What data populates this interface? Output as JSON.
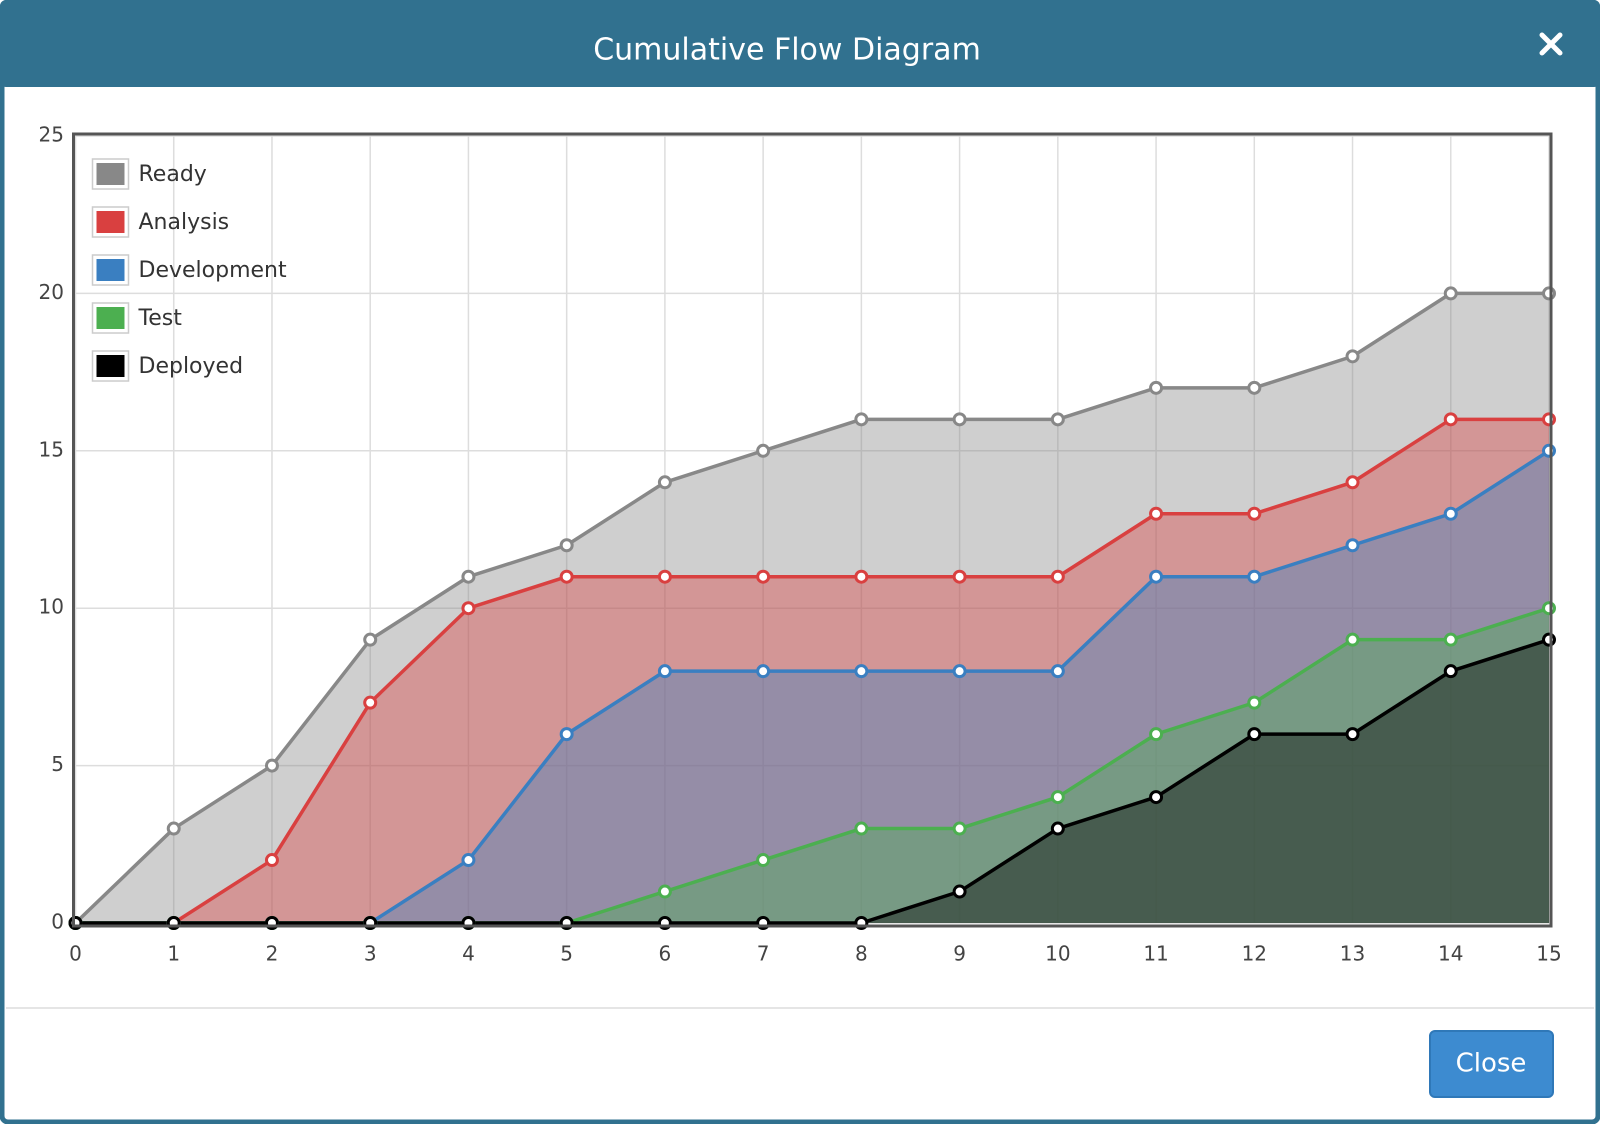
{
  "dialog": {
    "title": "Cumulative Flow Diagram",
    "button": "Close"
  },
  "chart_data": {
    "type": "area",
    "x": [
      0,
      1,
      2,
      3,
      4,
      5,
      6,
      7,
      8,
      9,
      10,
      11,
      12,
      13,
      14,
      15
    ],
    "xlim": [
      0,
      15
    ],
    "xticks": [
      0,
      1,
      2,
      3,
      4,
      5,
      6,
      7,
      8,
      9,
      10,
      11,
      12,
      13,
      14,
      15
    ],
    "ylim": [
      0,
      25
    ],
    "yticks": [
      0,
      5,
      10,
      15,
      20,
      25
    ],
    "grid": true,
    "legend": "top-left",
    "series": [
      {
        "name": "Ready",
        "color": "#888888",
        "values": [
          0,
          3,
          5,
          9,
          11,
          12,
          14,
          15,
          16,
          16,
          16,
          17,
          17,
          18,
          20,
          20
        ]
      },
      {
        "name": "Analysis",
        "color": "#d94040",
        "values": [
          0,
          0,
          2,
          7,
          10,
          11,
          11,
          11,
          11,
          11,
          11,
          13,
          13,
          14,
          16,
          16
        ]
      },
      {
        "name": "Development",
        "color": "#3a7fc1",
        "values": [
          0,
          0,
          0,
          0,
          2,
          6,
          8,
          8,
          8,
          8,
          8,
          11,
          11,
          12,
          13,
          15
        ]
      },
      {
        "name": "Test",
        "color": "#4caf50",
        "values": [
          0,
          0,
          0,
          0,
          0,
          0,
          1,
          2,
          3,
          3,
          4,
          6,
          7,
          9,
          9,
          10
        ]
      },
      {
        "name": "Deployed",
        "color": "#000000",
        "values": [
          0,
          0,
          0,
          0,
          0,
          0,
          0,
          0,
          0,
          1,
          3,
          4,
          6,
          6,
          8,
          9
        ]
      }
    ]
  }
}
